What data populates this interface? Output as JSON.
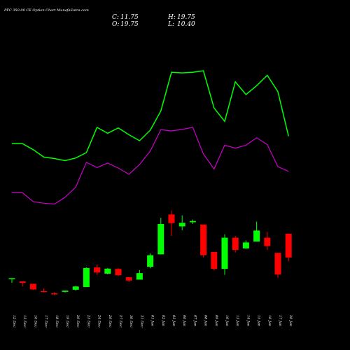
{
  "chart_data": {
    "type": "candlestick",
    "title": "PFC 350.00 CE Option Chart MunafaSutra.com",
    "ohlc_summary": {
      "c_label": "C:",
      "c_value": "11.75",
      "h_label": "H:",
      "h_value": "19.75",
      "o_label": "O:",
      "o_value": "19.75",
      "l_label": "L:",
      "l_value": "10.40"
    },
    "x_labels": [
      "12 Dec",
      "13 Dec",
      "16 Dec",
      "17 Dec",
      "18 Dec",
      "19 Dec",
      "20 Dec",
      "23 Dec",
      "24 Dec",
      "26 Dec",
      "27 Dec",
      "30 Dec",
      "31 Dec",
      "01 Jan",
      "02 Jan",
      "03 Jan",
      "06 Jan",
      "07 Jan",
      "08 Jan",
      "09 Jan",
      "10 Jan",
      "13 Jan",
      "14 Jan",
      "15 Jan",
      "16 Jan",
      "17 Jan",
      "20 Jan"
    ],
    "candles": [
      {
        "o": 4.6,
        "h": 4.8,
        "l": 3.2,
        "c": 4.8
      },
      {
        "o": 3.7,
        "h": 3.8,
        "l": 2.0,
        "c": 3.2
      },
      {
        "o": 2.9,
        "h": 2.9,
        "l": 0.8,
        "c": 1.0
      },
      {
        "o": 0.5,
        "h": 1.3,
        "l": 0.0,
        "c": 0.2
      },
      {
        "o": -0.3,
        "h": 0.1,
        "l": -1.0,
        "c": -0.5
      },
      {
        "o": 0.2,
        "h": 0.6,
        "l": -0.1,
        "c": 0.6
      },
      {
        "o": 0.9,
        "h": 2.2,
        "l": 0.6,
        "c": 2.0
      },
      {
        "o": 1.8,
        "h": 8.4,
        "l": 1.8,
        "c": 8.2
      },
      {
        "o": 8.4,
        "h": 9.4,
        "l": 5.9,
        "c": 6.7
      },
      {
        "o": 6.3,
        "h": 8.2,
        "l": 6.1,
        "c": 8.0
      },
      {
        "o": 7.9,
        "h": 8.2,
        "l": 5.5,
        "c": 5.8
      },
      {
        "o": 5.1,
        "h": 5.2,
        "l": 3.5,
        "c": 4.0
      },
      {
        "o": 4.3,
        "h": 7.5,
        "l": 4.3,
        "c": 6.5
      },
      {
        "o": 8.6,
        "h": 13.1,
        "l": 8.1,
        "c": 12.5
      },
      {
        "o": 12.8,
        "h": 25.1,
        "l": 12.8,
        "c": 23.0
      },
      {
        "o": 26.2,
        "h": 27.5,
        "l": 19.0,
        "c": 23.3
      },
      {
        "o": 22.2,
        "h": 25.9,
        "l": 20.9,
        "c": 23.4
      },
      {
        "o": 23.6,
        "h": 24.5,
        "l": 23.0,
        "c": 24.0
      },
      {
        "o": 22.8,
        "h": 22.8,
        "l": 11.8,
        "c": 12.5
      },
      {
        "o": 13.6,
        "h": 13.6,
        "l": 7.4,
        "c": 7.9
      },
      {
        "o": 7.9,
        "h": 19.5,
        "l": 5.9,
        "c": 18.4
      },
      {
        "o": 18.4,
        "h": 19.0,
        "l": 13.4,
        "c": 14.3
      },
      {
        "o": 14.8,
        "h": 17.5,
        "l": 14.7,
        "c": 16.8
      },
      {
        "o": 17.1,
        "h": 23.8,
        "l": 17.1,
        "c": 20.8
      },
      {
        "o": 18.4,
        "h": 20.3,
        "l": 14.3,
        "c": 15.6
      },
      {
        "o": 13.3,
        "h": 13.3,
        "l": 4.9,
        "c": 6.0
      },
      {
        "o": 19.75,
        "h": 19.75,
        "l": 10.4,
        "c": 11.75
      }
    ],
    "upper_band": [
      50.0,
      50.0,
      48.0,
      45.5,
      45.0,
      44.3,
      45.2,
      47.0,
      55.5,
      53.5,
      55.3,
      53.0,
      51.0,
      54.5,
      61.0,
      74.0,
      73.8,
      74.0,
      74.5,
      62.0,
      57.5,
      70.8,
      66.5,
      69.5,
      73.0,
      67.5,
      52.5
    ],
    "lower_band": [
      33.5,
      33.5,
      30.5,
      30.0,
      29.7,
      32.0,
      35.4,
      43.7,
      42.0,
      43.5,
      41.8,
      39.7,
      43.0,
      47.5,
      54.7,
      54.3,
      54.8,
      55.5,
      46.5,
      41.5,
      49.5,
      48.5,
      49.5,
      52.0,
      49.7,
      42.3,
      40.7
    ],
    "ylim": [
      -5,
      95
    ],
    "colors": {
      "background": "#000000",
      "bull": "#00ff00",
      "bear": "#ff0000",
      "upper_band": "#00ff00",
      "lower_band": "#cc00cc",
      "text": "#ffffff"
    }
  }
}
